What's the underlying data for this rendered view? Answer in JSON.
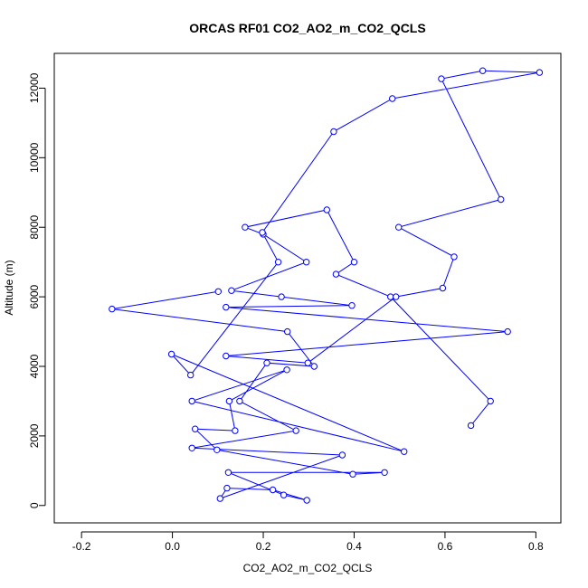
{
  "chart_data": {
    "type": "line",
    "title": "ORCAS RF01 CO2_AO2_m_CO2_QCLS",
    "xlabel": "CO2_AO2_m_CO2_QCLS",
    "ylabel": "Altitude (m)",
    "xlim": [
      -0.26,
      0.855
    ],
    "ylim": [
      -500,
      13000
    ],
    "xticks": [
      -0.2,
      0.0,
      0.2,
      0.4,
      0.6,
      0.8
    ],
    "xtick_labels": [
      "-0.2",
      "0.0",
      "0.2",
      "0.4",
      "0.6",
      "0.8"
    ],
    "yticks": [
      0,
      2000,
      4000,
      6000,
      8000,
      10000,
      12000
    ],
    "ytick_labels": [
      "0",
      "2000",
      "4000",
      "6000",
      "8000",
      "10000",
      "12000"
    ],
    "grid": false,
    "markers": "open-circle",
    "series": [
      {
        "color": "#0000ff",
        "x": [
          0.657,
          0.7,
          0.48,
          0.36,
          0.4,
          0.34,
          0.16,
          0.2,
          0.295,
          0.13,
          0.24,
          0.395,
          0.118,
          0.738,
          0.118,
          0.298,
          0.492,
          0.595,
          0.62,
          0.498,
          0.723,
          0.592,
          0.683,
          0.808,
          0.484,
          0.355,
          0.198,
          0.233,
          0.04,
          -0.002,
          0.51,
          0.043,
          0.252,
          0.125,
          0.138,
          0.05,
          0.098,
          0.397,
          0.467,
          0.123,
          0.245,
          0.296,
          0.221,
          0.12,
          0.105,
          0.374,
          0.043,
          0.272,
          0.148,
          0.208,
          0.312,
          0.253,
          -0.133,
          0.101
        ],
        "y": [
          2300,
          3000,
          6000,
          6650,
          7000,
          8500,
          8000,
          7800,
          7000,
          6180,
          6000,
          5750,
          5700,
          5000,
          4300,
          4100,
          6000,
          6250,
          7150,
          8000,
          8800,
          12270,
          12500,
          12450,
          11700,
          10750,
          7850,
          7000,
          3750,
          4350,
          1550,
          3000,
          3900,
          3000,
          2150,
          2200,
          1600,
          900,
          950,
          950,
          300,
          150,
          450,
          500,
          200,
          1450,
          1650,
          2150,
          3000,
          4100,
          4000,
          5000,
          5650,
          6150
        ]
      }
    ]
  }
}
